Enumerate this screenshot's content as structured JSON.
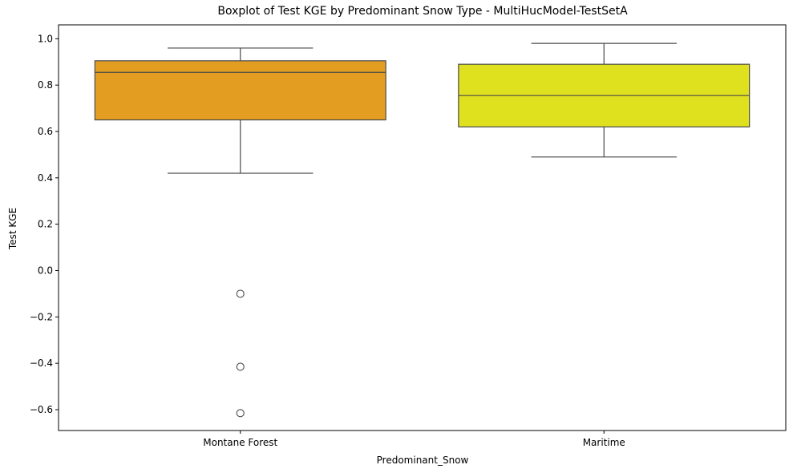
{
  "chart_data": {
    "type": "boxplot",
    "title": "Boxplot of Test KGE by Predominant Snow Type - MultiHucModel-TestSetA",
    "xlabel": "Predominant_Snow",
    "ylabel": "Test KGE",
    "ylim": [
      -0.69,
      1.06
    ],
    "yticks": [
      -0.6,
      -0.4,
      -0.2,
      0.0,
      0.2,
      0.4,
      0.6,
      0.8,
      1.0
    ],
    "ytick_labels": [
      "−0.6",
      "−0.4",
      "−0.2",
      "0.0",
      "0.2",
      "0.4",
      "0.6",
      "0.8",
      "1.0"
    ],
    "grid": false,
    "legend": "none",
    "categories": [
      "Montane Forest",
      "Maritime"
    ],
    "boxes": [
      {
        "q1": 0.65,
        "median": 0.855,
        "q3": 0.905,
        "whisker_low": 0.42,
        "whisker_high": 0.96,
        "outliers": [
          -0.1,
          -0.415,
          -0.615
        ],
        "color": "#e39d20"
      },
      {
        "q1": 0.62,
        "median": 0.755,
        "q3": 0.89,
        "whisker_low": 0.49,
        "whisker_high": 0.98,
        "outliers": [],
        "color": "#dfe01e"
      }
    ]
  }
}
